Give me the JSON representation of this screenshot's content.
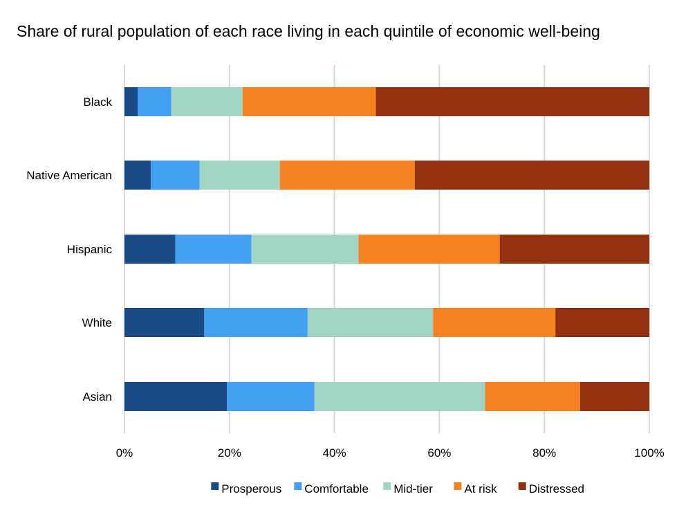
{
  "chart_data": {
    "type": "bar",
    "orientation": "horizontal",
    "stacked": true,
    "title": "Share of rural population of each race living in each quintile of economic well-being",
    "xlabel": "",
    "ylabel": "",
    "categories": [
      "Black",
      "Native American",
      "Hispanic",
      "White",
      "Asian"
    ],
    "xlim": [
      0,
      100
    ],
    "x_ticks": [
      "0%",
      "20%",
      "40%",
      "60%",
      "80%",
      "100%"
    ],
    "grid": "vertical",
    "legend_position": "bottom",
    "series": [
      {
        "name": "Prosperous",
        "color": "#1a4b87",
        "values": [
          2.5,
          5.0,
          9.7,
          15.2,
          19.5
        ]
      },
      {
        "name": "Comfortable",
        "color": "#43a0f2",
        "values": [
          6.4,
          9.3,
          14.5,
          19.7,
          16.7
        ]
      },
      {
        "name": "Mid-tier",
        "color": "#a1d4c3",
        "values": [
          13.6,
          15.3,
          20.4,
          23.9,
          32.5
        ]
      },
      {
        "name": "At risk",
        "color": "#f68121",
        "values": [
          25.4,
          25.7,
          26.9,
          23.3,
          18.1
        ]
      },
      {
        "name": "Distressed",
        "color": "#933010",
        "values": [
          52.1,
          44.7,
          28.5,
          17.9,
          13.2
        ]
      }
    ]
  }
}
